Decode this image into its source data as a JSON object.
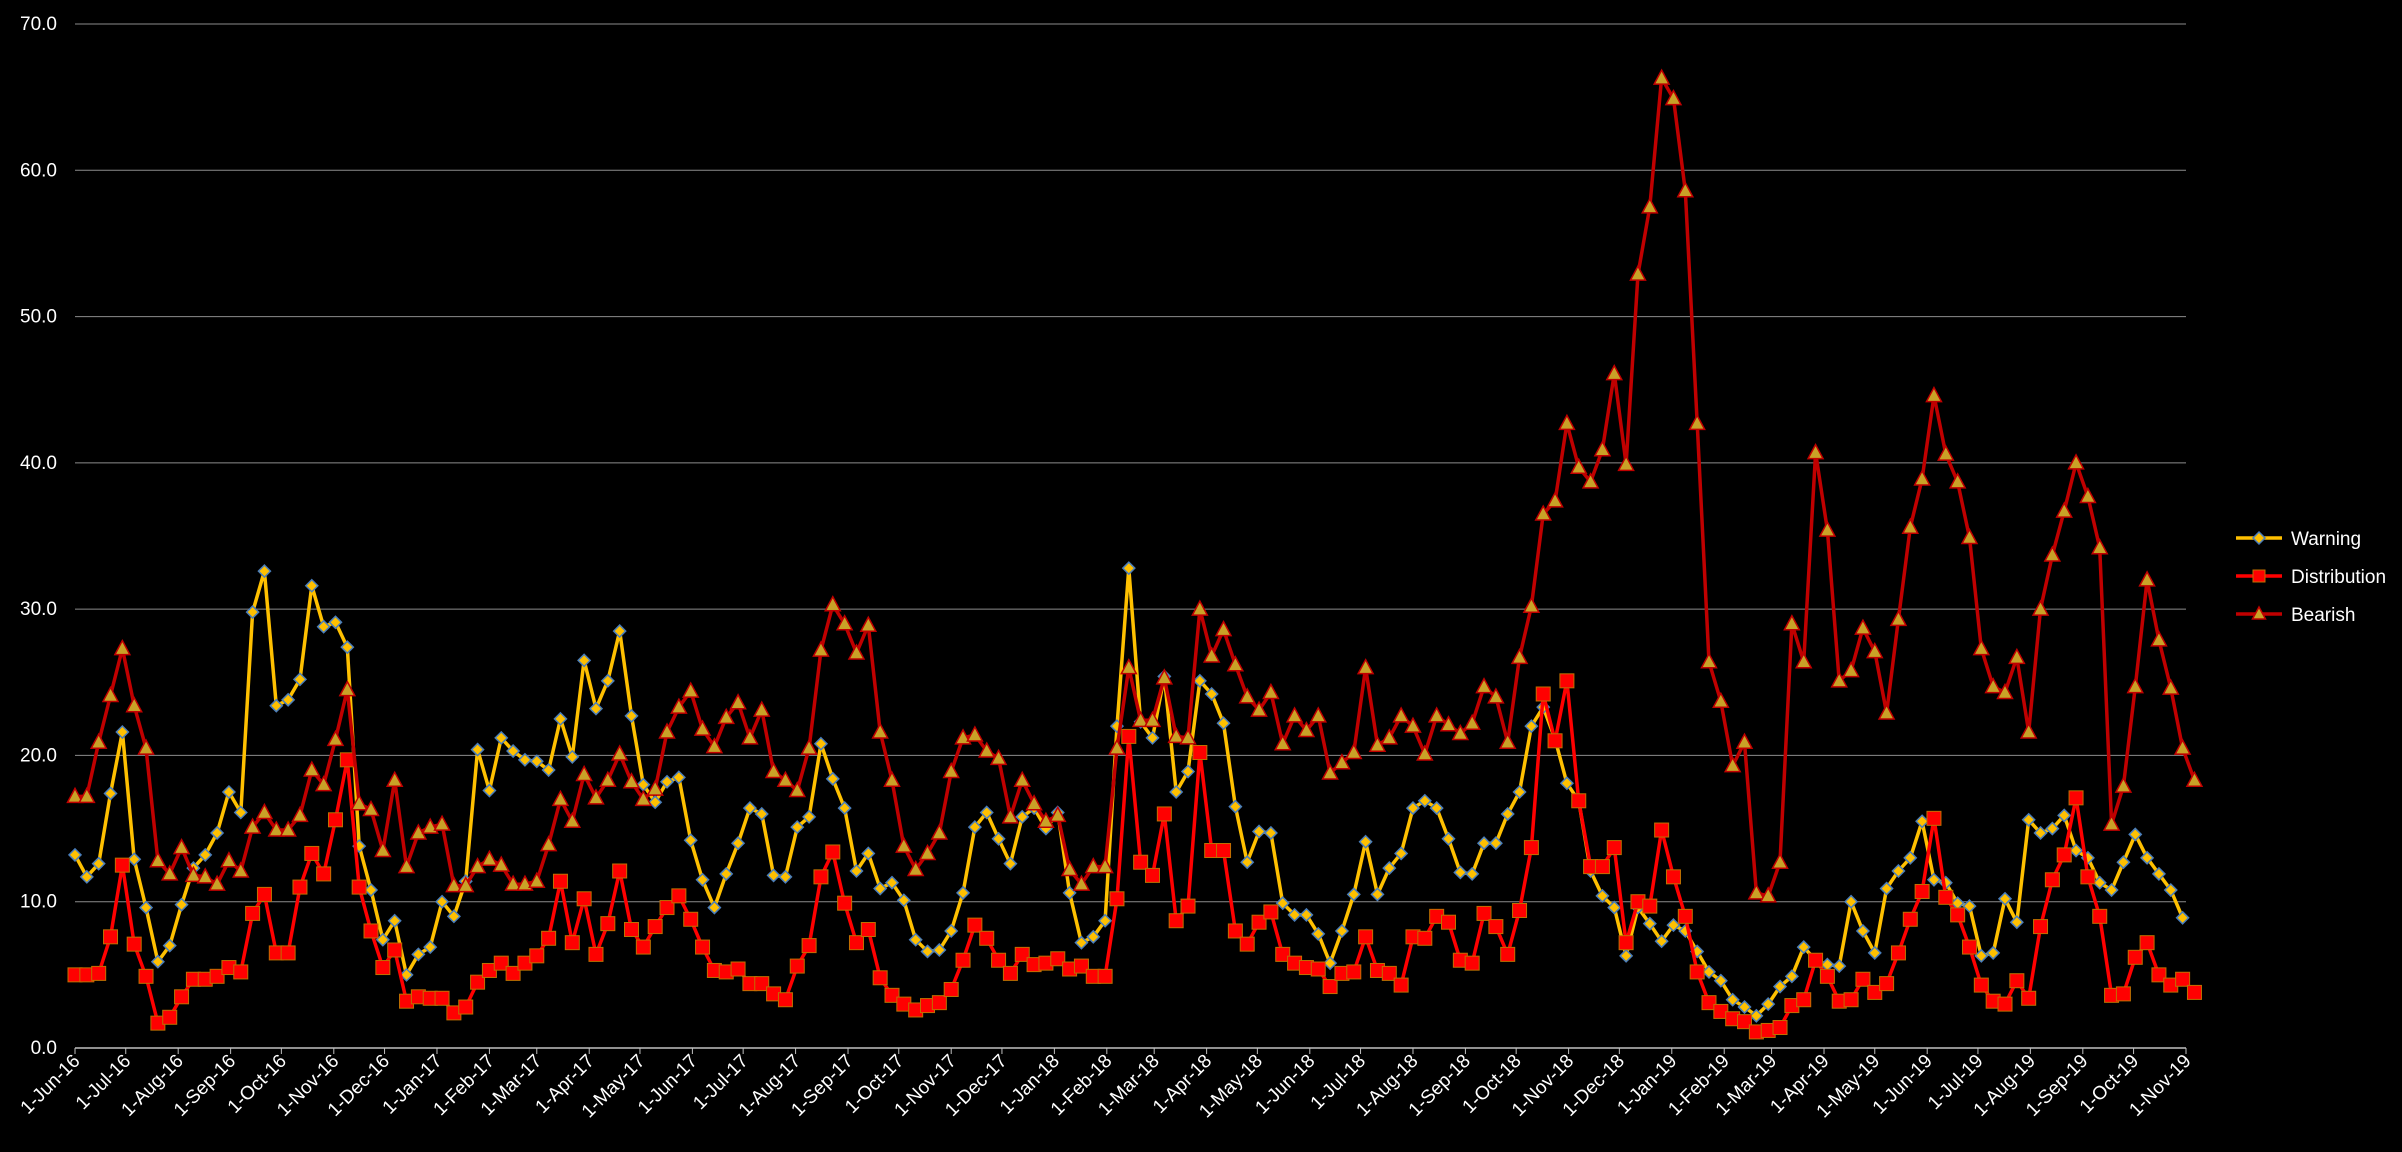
{
  "chart_data": {
    "type": "line",
    "title": "",
    "xlabel": "",
    "ylabel": "",
    "ylim": [
      0,
      70
    ],
    "y_ticks": [
      "0.0",
      "10.0",
      "20.0",
      "30.0",
      "40.0",
      "50.0",
      "60.0",
      "70.0"
    ],
    "x_tick_labels": [
      "1-Jun-16",
      "1-Jul-16",
      "1-Aug-16",
      "1-Sep-16",
      "1-Oct-16",
      "1-Nov-16",
      "1-Dec-16",
      "1-Jan-17",
      "1-Feb-17",
      "1-Mar-17",
      "1-Apr-17",
      "1-May-17",
      "1-Jun-17",
      "1-Jul-17",
      "1-Aug-17",
      "1-Sep-17",
      "1-Oct-17",
      "1-Nov-17",
      "1-Dec-17",
      "1-Jan-18",
      "1-Feb-18",
      "1-Mar-18",
      "1-Apr-18",
      "1-May-18",
      "1-Jun-18",
      "1-Jul-18",
      "1-Aug-18",
      "1-Sep-18",
      "1-Oct-18",
      "1-Nov-18",
      "1-Dec-18",
      "1-Jan-19",
      "1-Feb-19",
      "1-Mar-19",
      "1-Apr-19",
      "1-May-19",
      "1-Jun-19",
      "1-Jul-19",
      "1-Aug-19",
      "1-Sep-19",
      "1-Oct-19",
      "1-Nov-19"
    ],
    "x_range": [
      "2016-06-01",
      "2019-11-01"
    ],
    "grid": true,
    "legend_position": "right",
    "series": [
      {
        "name": "Warning",
        "color": "#ffc000",
        "marker": "diamond",
        "x_start": "2016-06-01",
        "interval_days": 7,
        "values": [
          13.2,
          11.7,
          12.6,
          17.4,
          21.6,
          12.9,
          9.6,
          5.9,
          7.0,
          9.8,
          12.3,
          13.2,
          14.7,
          17.5,
          16.1,
          29.8,
          32.6,
          23.4,
          23.8,
          25.2,
          31.6,
          28.8,
          29.1,
          27.4,
          13.8,
          10.8,
          7.4,
          8.7,
          5.0,
          6.4,
          6.9,
          10.0,
          9.0,
          11.4,
          20.4,
          17.6,
          21.2,
          20.3,
          19.7,
          19.6,
          19.0,
          22.5,
          19.9,
          26.5,
          23.2,
          25.1,
          28.5,
          22.7,
          18.0,
          16.8,
          18.2,
          18.5,
          14.2,
          11.5,
          9.6,
          11.9,
          14.0,
          16.4,
          16.0,
          11.8,
          11.7,
          15.1,
          15.8,
          20.8,
          18.4,
          16.4,
          12.1,
          13.3,
          10.9,
          11.3,
          10.1,
          7.4,
          6.6,
          6.7,
          8.0,
          10.6,
          15.1,
          16.1,
          14.3,
          12.6,
          15.8,
          16.4,
          15.0,
          16.1,
          10.6,
          7.2,
          7.6,
          8.7,
          22.0,
          32.8,
          22.3,
          21.2,
          25.4,
          17.5,
          18.9,
          25.1,
          24.2,
          22.2,
          16.5,
          12.7,
          14.8,
          14.7,
          9.9,
          9.1,
          9.1,
          7.8,
          5.8,
          8.0,
          10.5,
          14.1,
          10.5,
          12.3,
          13.3,
          16.4,
          16.9,
          16.4,
          14.3,
          12.0,
          11.9,
          14.0,
          14.0,
          16.0,
          17.5,
          22.0,
          23.3,
          21.1,
          18.1,
          16.9,
          12.1,
          10.4,
          9.6,
          6.3,
          9.6,
          8.5,
          7.3,
          8.4,
          8.0,
          6.6,
          5.2,
          4.6,
          3.3,
          2.8,
          2.2,
          3.0,
          4.2,
          4.9,
          6.9,
          6.0,
          5.7,
          5.6,
          10.0,
          8.0,
          6.5,
          10.9,
          12.1,
          13.0,
          15.5,
          11.5,
          11.3,
          9.9,
          9.7,
          6.3,
          6.5,
          10.2,
          8.6,
          15.6,
          14.7,
          15.0,
          15.9,
          13.5,
          13.0,
          11.3,
          10.8,
          12.7,
          14.6,
          13.0,
          11.9,
          10.8,
          8.9
        ]
      },
      {
        "name": "Distribution",
        "color": "#ff0000",
        "marker": "square",
        "x_start": "2016-06-01",
        "interval_days": 7,
        "values": [
          5.0,
          5.0,
          5.1,
          7.6,
          12.5,
          7.1,
          4.9,
          1.7,
          2.1,
          3.5,
          4.7,
          4.7,
          4.9,
          5.5,
          5.2,
          9.2,
          10.5,
          6.5,
          6.5,
          11.0,
          13.3,
          11.9,
          15.6,
          19.7,
          11.0,
          8.0,
          5.5,
          6.7,
          3.2,
          3.5,
          3.4,
          3.4,
          2.4,
          2.8,
          4.5,
          5.3,
          5.8,
          5.1,
          5.8,
          6.3,
          7.5,
          11.4,
          7.2,
          10.2,
          6.4,
          8.5,
          12.1,
          8.1,
          6.9,
          8.3,
          9.6,
          10.4,
          8.8,
          6.9,
          5.3,
          5.2,
          5.4,
          4.4,
          4.4,
          3.7,
          3.3,
          5.6,
          7.0,
          11.7,
          13.4,
          9.9,
          7.2,
          8.1,
          4.8,
          3.6,
          3.0,
          2.6,
          2.9,
          3.1,
          4.0,
          6.0,
          8.4,
          7.5,
          6.0,
          5.1,
          6.4,
          5.7,
          5.8,
          6.1,
          5.4,
          5.6,
          4.9,
          4.9,
          10.2,
          21.3,
          12.7,
          11.8,
          16.0,
          8.7,
          9.7,
          20.2,
          13.5,
          13.5,
          8.0,
          7.1,
          8.6,
          9.3,
          6.4,
          5.8,
          5.5,
          5.4,
          4.2,
          5.1,
          5.2,
          7.6,
          5.3,
          5.1,
          4.3,
          7.6,
          7.5,
          9.0,
          8.6,
          6.0,
          5.8,
          9.2,
          8.3,
          6.4,
          9.4,
          13.7,
          24.2,
          21.0,
          25.1,
          16.9,
          12.4,
          12.4,
          13.7,
          7.2,
          10.0,
          9.7,
          14.9,
          11.7,
          9.0,
          5.2,
          3.1,
          2.5,
          2.0,
          1.8,
          1.1,
          1.2,
          1.4,
          2.9,
          3.3,
          6.0,
          4.9,
          3.2,
          3.3,
          4.7,
          3.8,
          4.4,
          6.5,
          8.8,
          10.7,
          15.7,
          10.3,
          9.1,
          6.9,
          4.3,
          3.2,
          3.0,
          4.6,
          3.4,
          8.3,
          11.5,
          13.2,
          17.1,
          11.7,
          9.0,
          3.6,
          3.7,
          6.2,
          7.2,
          5.0,
          4.3,
          4.7,
          3.8
        ]
      },
      {
        "name": "Bearish",
        "color": "#c00000",
        "marker": "triangle",
        "x_start": "2016-06-01",
        "interval_days": 7,
        "values": [
          17.2,
          17.2,
          20.9,
          24.1,
          27.3,
          23.4,
          20.5,
          12.8,
          11.9,
          13.7,
          11.8,
          11.7,
          11.2,
          12.8,
          12.1,
          15.1,
          16.1,
          14.9,
          14.9,
          15.9,
          19.0,
          18.0,
          21.1,
          24.5,
          16.7,
          16.3,
          13.5,
          18.3,
          12.4,
          14.7,
          15.1,
          15.3,
          11.1,
          11.1,
          12.4,
          12.9,
          12.5,
          11.2,
          11.2,
          11.4,
          13.9,
          17.0,
          15.5,
          18.7,
          17.1,
          18.3,
          20.1,
          18.2,
          17.0,
          17.7,
          21.6,
          23.3,
          24.4,
          21.8,
          20.6,
          22.6,
          23.6,
          21.2,
          23.1,
          18.9,
          18.3,
          17.6,
          20.5,
          27.2,
          30.3,
          29.0,
          27.0,
          28.9,
          21.6,
          18.3,
          13.8,
          12.2,
          13.3,
          14.7,
          18.9,
          21.2,
          21.4,
          20.3,
          19.8,
          15.8,
          18.3,
          16.7,
          15.5,
          15.9,
          12.2,
          11.2,
          12.4,
          12.4,
          20.5,
          26.0,
          22.4,
          22.4,
          25.3,
          21.3,
          21.2,
          30.0,
          26.8,
          28.6,
          26.2,
          24.0,
          23.1,
          24.3,
          20.8,
          22.7,
          21.7,
          22.7,
          18.8,
          19.5,
          20.2,
          26.0,
          20.7,
          21.2,
          22.7,
          22.0,
          20.1,
          22.7,
          22.1,
          21.5,
          22.2,
          24.7,
          24.0,
          20.9,
          26.7,
          30.2,
          36.5,
          37.4,
          42.7,
          39.7,
          38.7,
          40.9,
          46.1,
          39.9,
          52.9,
          57.5,
          66.3,
          64.9,
          58.6,
          42.7,
          26.4,
          23.7,
          19.3,
          20.9,
          10.6,
          10.4,
          12.7,
          29.0,
          26.4,
          40.7,
          35.4,
          25.1,
          25.8,
          28.7,
          27.1,
          22.9,
          29.3,
          35.6,
          38.9,
          44.6,
          40.6,
          38.7,
          34.9,
          27.3,
          24.7,
          24.3,
          26.7,
          21.6,
          30.0,
          33.7,
          36.7,
          40.0,
          37.7,
          34.2,
          15.3,
          17.9,
          24.7,
          32.0,
          27.9,
          24.6,
          20.5,
          18.3
        ]
      }
    ]
  }
}
